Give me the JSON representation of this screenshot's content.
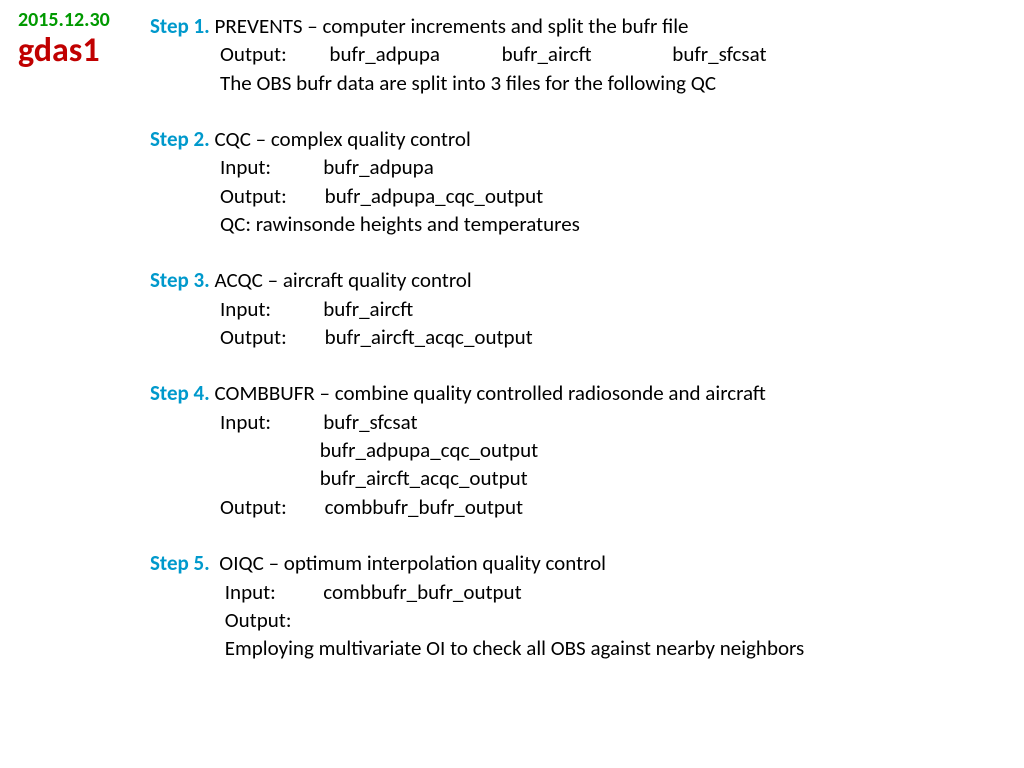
{
  "header": {
    "date": "2015.12.30",
    "title": "gdas1"
  },
  "colors": {
    "date": "#009900",
    "title": "#c00000",
    "step_label": "#0099cc",
    "text": "#000000",
    "background": "#ffffff"
  },
  "steps": {
    "s1": {
      "label": "Step 1. ",
      "title": "PREVENTS – computer increments and split the bufr file",
      "line2": "Output:         bufr_adpupa             bufr_aircft                 bufr_sfcsat",
      "line3": "The OBS bufr data are split into 3 files for the following QC"
    },
    "s2": {
      "label": "Step 2. ",
      "title": "CQC – complex quality control",
      "line2": "Input:           bufr_adpupa",
      "line3": "Output:        bufr_adpupa_cqc_output",
      "line4": "QC: rawinsonde heights and temperatures"
    },
    "s3": {
      "label": "Step 3. ",
      "title": "ACQC – aircraft quality control",
      "line2": "Input:           bufr_aircft",
      "line3": "Output:        bufr_aircft_acqc_output"
    },
    "s4": {
      "label": "Step 4. ",
      "title": "COMBBUFR – combine quality controlled radiosonde and aircraft",
      "line2": "Input:           bufr_sfcsat",
      "line3": "                     bufr_adpupa_cqc_output",
      "line4": "                     bufr_aircft_acqc_output",
      "line5": "Output:        combbufr_bufr_output"
    },
    "s5": {
      "label": "Step 5.  ",
      "title": "OIQC – optimum interpolation quality control",
      "line2": " Input:          combbufr_bufr_output",
      "line3": " Output:",
      "line4": " Employing multivariate OI to check all OBS against nearby neighbors"
    }
  }
}
